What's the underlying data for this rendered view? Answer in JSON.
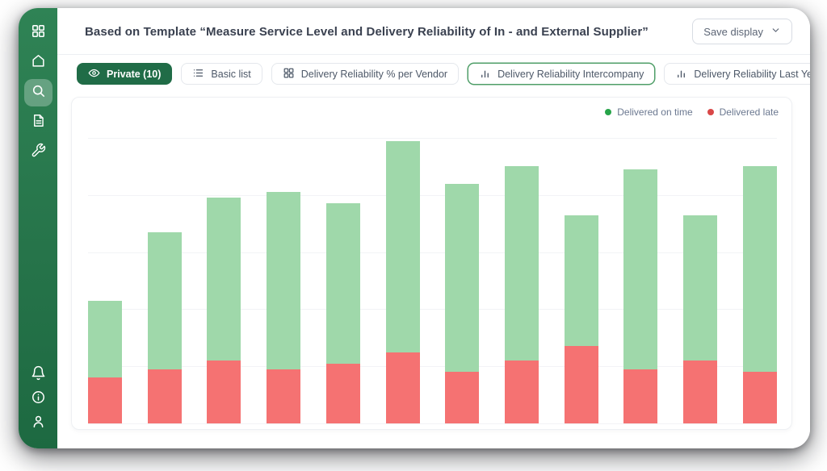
{
  "header": {
    "title": "Based on Template “Measure Service Level and Delivery Reliability of In - and External Supplier”",
    "save_button_label": "Save display"
  },
  "toolbar": {
    "buttons": [
      {
        "label": "Private (10)",
        "icon": "eye-icon",
        "style": "primary"
      },
      {
        "label": "Basic list",
        "icon": "list-icon",
        "style": "default"
      },
      {
        "label": "Delivery Reliability % per Vendor",
        "icon": "grid-icon",
        "style": "default"
      },
      {
        "label": "Delivery Reliability Intercompany",
        "icon": "bar-chart-icon",
        "style": "selected"
      },
      {
        "label": "Delivery Reliability Last Year",
        "icon": "bar-chart-icon",
        "style": "default"
      }
    ]
  },
  "sidebar": {
    "items": [
      "dashboard-icon",
      "home-icon",
      "search-icon",
      "document-icon",
      "wrench-icon"
    ],
    "active_item": "search-icon",
    "bottom_items": [
      "bell-icon",
      "info-icon",
      "user-icon"
    ]
  },
  "colors": {
    "sidebar_green_top": "#2f8355",
    "sidebar_green_bottom": "#1d6941",
    "primary_button_green": "#206c47",
    "selected_border_green": "#4f9e68",
    "bar_green": "#9fd8aa",
    "bar_red": "#f57272",
    "legend_green_dot": "#27a449",
    "legend_red_dot": "#d94848"
  },
  "chart_data": {
    "type": "bar",
    "stacked": true,
    "title": "",
    "xlabel": "",
    "ylabel": "",
    "x_axis_labels_visible": false,
    "y_axis_labels_visible": false,
    "grid": true,
    "legend_position": "top-right",
    "ylim": [
      0,
      100
    ],
    "gridline_values": [
      100,
      80,
      60,
      40,
      20,
      0
    ],
    "categories": [
      "",
      "",
      "",
      "",
      "",
      "",
      "",
      "",
      "",
      "",
      "",
      ""
    ],
    "series": [
      {
        "name": "Delivered on time",
        "color": "#9fd8aa",
        "dot_color": "#27a449",
        "stack_position": "top",
        "values": [
          27,
          48,
          57,
          62,
          56,
          74,
          66,
          68,
          46,
          70,
          51,
          72
        ]
      },
      {
        "name": "Delivered late",
        "color": "#f57272",
        "dot_color": "#d94848",
        "stack_position": "bottom",
        "values": [
          16,
          19,
          22,
          19,
          21,
          25,
          18,
          22,
          27,
          19,
          22,
          18
        ]
      }
    ]
  }
}
